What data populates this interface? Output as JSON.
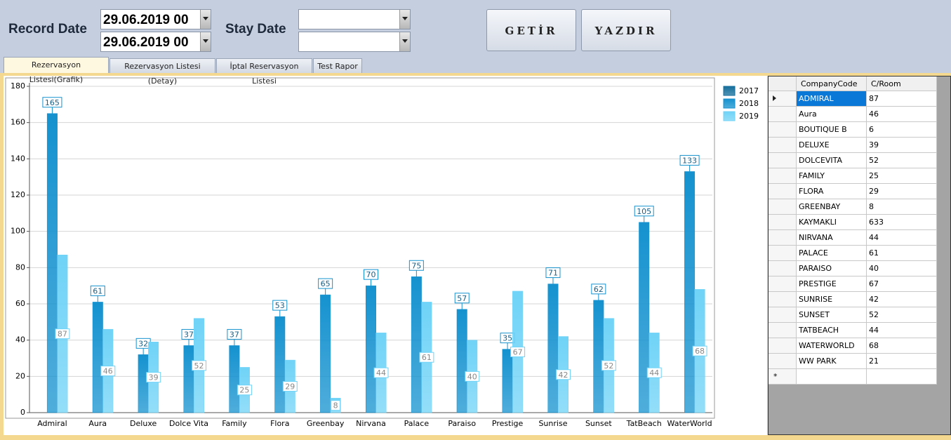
{
  "form": {
    "record_date_label": "Record Date",
    "record_date_from": "29.06.2019 00",
    "record_date_to": "29.06.2019 00",
    "stay_date_label": "Stay Date",
    "buttons": [
      "GETİR",
      "YAZDIR"
    ]
  },
  "tabs": [
    "Rezervasyon Listesi(Grafik)",
    "Rezervasyon Listesi (Detay)",
    "İptal Reservasyon Listesi",
    "Test Rapor"
  ],
  "chart_data": {
    "type": "bar",
    "categories": [
      "Admiral",
      "Aura",
      "Deluxe",
      "Dolce Vita",
      "Family",
      "Flora",
      "Greenbay",
      "Nirvana",
      "Palace",
      "Paraiso",
      "Prestige",
      "Sunrise",
      "Sunset",
      "TatBeach",
      "WaterWorld"
    ],
    "series": [
      {
        "name": "2017",
        "color": "#156f9c",
        "values": [
          null,
          null,
          null,
          null,
          null,
          null,
          null,
          null,
          null,
          null,
          null,
          null,
          null,
          null,
          null
        ]
      },
      {
        "name": "2018",
        "color": "#1592cf",
        "values": [
          165,
          61,
          32,
          37,
          37,
          53,
          65,
          70,
          75,
          57,
          35,
          71,
          62,
          105,
          133
        ]
      },
      {
        "name": "2019",
        "color": "#6fd3f7",
        "values": [
          87,
          46,
          39,
          52,
          25,
          29,
          8,
          44,
          61,
          40,
          67,
          42,
          52,
          44,
          68
        ]
      }
    ],
    "ylim": [
      0,
      180
    ],
    "yticks": [
      0,
      20,
      40,
      60,
      80,
      100,
      120,
      140,
      160,
      180
    ],
    "grid": true,
    "legend": "top-right"
  },
  "table": {
    "columns": [
      "CompanyCode",
      "C/Room"
    ],
    "rows": [
      [
        "ADMIRAL",
        "87"
      ],
      [
        "Aura",
        "46"
      ],
      [
        "BOUTIQUE B",
        "6"
      ],
      [
        "DELUXE",
        "39"
      ],
      [
        "DOLCEVITA",
        "52"
      ],
      [
        "FAMILY",
        "25"
      ],
      [
        "FLORA",
        "29"
      ],
      [
        "GREENBAY",
        "8"
      ],
      [
        "KAYMAKLI",
        "633"
      ],
      [
        "NIRVANA",
        "44"
      ],
      [
        "PALACE",
        "61"
      ],
      [
        "PARAISO",
        "40"
      ],
      [
        "PRESTIGE",
        "67"
      ],
      [
        "SUNRISE",
        "42"
      ],
      [
        "SUNSET",
        "52"
      ],
      [
        "TATBEACH",
        "44"
      ],
      [
        "WATERWORLD",
        "68"
      ],
      [
        "WW PARK",
        "21"
      ]
    ]
  }
}
